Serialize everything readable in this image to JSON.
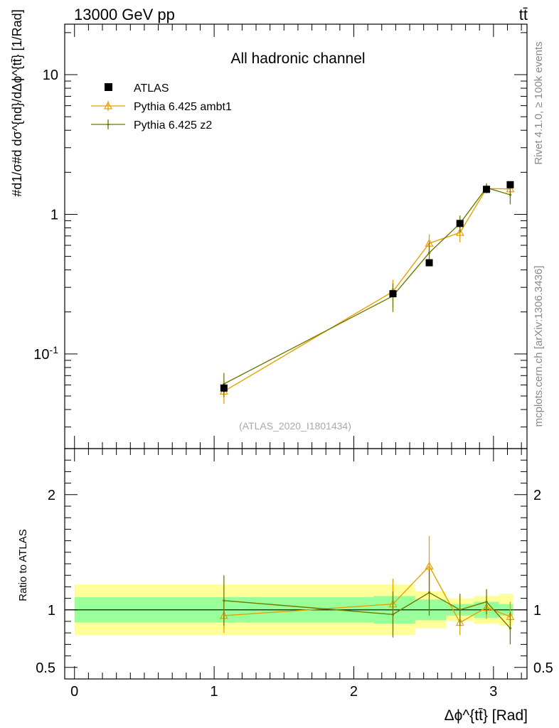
{
  "header": {
    "energy_label": "13000 GeV pp",
    "process_label": "tt̄"
  },
  "side_labels": {
    "rivet": "Rivet 4.1.0, ≥ 100k events",
    "site": "mcplots.cern.ch [arXiv:1306.3436]"
  },
  "chart_data": {
    "type": "line",
    "title": "All hadronic channel",
    "analysis_id": "(ATLAS_2020_I1801434)",
    "xlabel": "Δϕ^{tt̄} [Rad]",
    "ylabel": "#d1/σ#d dσ^{nd}/dΔϕ^{tt̄} [1/Rad]",
    "ratio_ylabel": "Ratio to ATLAS",
    "xlim": [
      -0.07,
      3.24
    ],
    "ylim": [
      0.021,
      23
    ],
    "yscale": "log",
    "ratio_ylim": [
      0.4,
      2.4
    ],
    "x_ticks": [
      {
        "v": 0,
        "label": "0"
      },
      {
        "v": 1,
        "label": "1"
      },
      {
        "v": 2,
        "label": "2"
      },
      {
        "v": 3,
        "label": "3"
      }
    ],
    "y_ticks": [
      {
        "v": 0.1,
        "label": "10^-1"
      },
      {
        "v": 1,
        "label": "1"
      },
      {
        "v": 10,
        "label": "10"
      }
    ],
    "ratio_ticks": [
      {
        "v": 0.5,
        "label": "0.5"
      },
      {
        "v": 1,
        "label": "1"
      },
      {
        "v": 2,
        "label": "2"
      }
    ],
    "x": [
      1.07,
      2.28,
      2.54,
      2.76,
      2.95,
      3.12
    ],
    "bins": [
      [
        0.0,
        2.14
      ],
      [
        2.14,
        2.44
      ],
      [
        2.44,
        2.66
      ],
      [
        2.66,
        2.86
      ],
      [
        2.86,
        3.04
      ],
      [
        3.04,
        3.14
      ]
    ],
    "data": {
      "name": "ATLAS",
      "values": [
        0.057,
        0.27,
        0.45,
        0.86,
        1.51,
        1.63
      ],
      "yerr": [
        0.004,
        0.015,
        0.02,
        0.05,
        0.06,
        0.07
      ],
      "band_stat": [
        0.11,
        0.12,
        0.09,
        0.05,
        0.07,
        0.05
      ],
      "band_total": [
        0.22,
        0.22,
        0.16,
        0.1,
        0.12,
        0.14
      ]
    },
    "series": [
      {
        "name": "Pythia 6.425 ambt1",
        "color": "#e8a000",
        "marker": "triangle",
        "values": [
          0.054,
          0.28,
          0.62,
          0.74,
          1.53,
          1.52
        ],
        "yerr": [
          0.01,
          0.06,
          0.1,
          0.11,
          0.12,
          0.2
        ],
        "ratio": [
          0.95,
          1.05,
          1.38,
          0.89,
          1.02,
          0.94
        ],
        "ratio_err": [
          0.15,
          0.22,
          0.26,
          0.11,
          0.1,
          0.13
        ]
      },
      {
        "name": "Pythia 6.425 z2",
        "color": "#6b7a00",
        "marker": "dot",
        "values": [
          0.061,
          0.26,
          0.53,
          0.86,
          1.55,
          1.38
        ],
        "yerr": [
          0.012,
          0.06,
          0.1,
          0.12,
          0.12,
          0.2
        ],
        "ratio": [
          1.08,
          0.96,
          1.15,
          1.0,
          1.07,
          0.84
        ],
        "ratio_err": [
          0.22,
          0.2,
          0.2,
          0.14,
          0.11,
          0.14
        ]
      }
    ]
  },
  "colors": {
    "band_stat": "#99ff99",
    "band_total": "#ffff99",
    "data_marker": "#000000",
    "axis": "#000000"
  }
}
